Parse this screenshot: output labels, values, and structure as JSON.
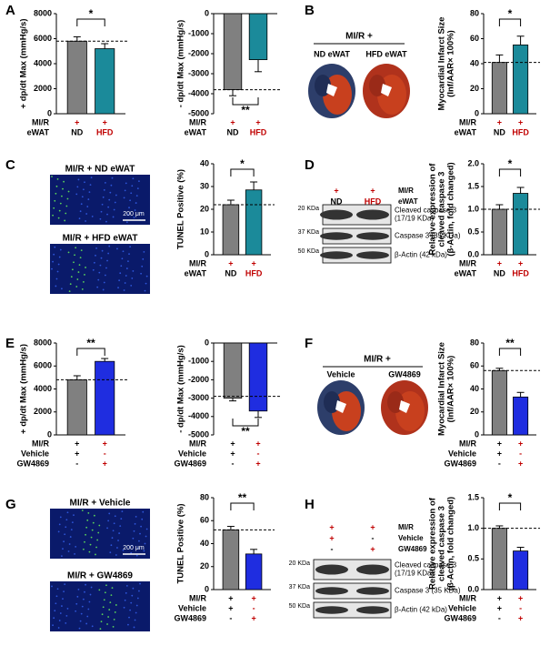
{
  "panel_labels": [
    "A",
    "B",
    "C",
    "D",
    "E",
    "F",
    "G",
    "H"
  ],
  "chart_data": [
    {
      "type": "bar",
      "y_label": [
        "+ dp/dt Max (mmHg/s)"
      ],
      "values": [
        5800,
        5200
      ],
      "errors": [
        350,
        400
      ],
      "colors": [
        "#808080",
        "#1b8a9a"
      ],
      "ylim": [
        0,
        8000
      ],
      "yticks": [
        0,
        2000,
        4000,
        6000,
        8000
      ],
      "ref_line": 5800,
      "significance": "*",
      "rows": [
        {
          "name": "MI/R",
          "labels": [
            "+",
            "+"
          ],
          "colors": [
            "#c00000",
            "#c00000"
          ]
        },
        {
          "name": "eWAT",
          "labels": [
            "ND",
            "HFD"
          ],
          "colors": [
            "#000000",
            "#c00000"
          ]
        }
      ]
    },
    {
      "type": "bar",
      "y_label": [
        "- dp/dt Max (mmHg/s)"
      ],
      "values": [
        -3800,
        -2300
      ],
      "errors": [
        300,
        600
      ],
      "colors": [
        "#808080",
        "#1b8a9a"
      ],
      "ylim": [
        -5000,
        0
      ],
      "yticks": [
        -5000,
        -4000,
        -3000,
        -2000,
        -1000,
        0
      ],
      "ref_line": -3800,
      "significance": "**",
      "rows": [
        {
          "name": "MI/R",
          "labels": [
            "+",
            "+"
          ],
          "colors": [
            "#c00000",
            "#c00000"
          ]
        },
        {
          "name": "eWAT",
          "labels": [
            "ND",
            "HFD"
          ],
          "colors": [
            "#000000",
            "#c00000"
          ]
        }
      ]
    },
    {
      "type": "bar",
      "y_label": [
        "Myocardial Infarct Size",
        "(Inf/AAR× 100%)"
      ],
      "values": [
        41,
        55
      ],
      "errors": [
        6,
        7
      ],
      "colors": [
        "#808080",
        "#1b8a9a"
      ],
      "ylim": [
        0,
        80
      ],
      "yticks": [
        0,
        20,
        40,
        60,
        80
      ],
      "ref_line": 41,
      "significance": "*",
      "rows": [
        {
          "name": "MI/R",
          "labels": [
            "+",
            "+"
          ],
          "colors": [
            "#c00000",
            "#c00000"
          ]
        },
        {
          "name": "eWAT",
          "labels": [
            "ND",
            "HFD"
          ],
          "colors": [
            "#000000",
            "#c00000"
          ]
        }
      ]
    },
    {
      "type": "bar",
      "y_label": [
        "TUNEL Positive (%)"
      ],
      "values": [
        22,
        28.5
      ],
      "errors": [
        2,
        3.5
      ],
      "colors": [
        "#808080",
        "#1b8a9a"
      ],
      "ylim": [
        0,
        40
      ],
      "yticks": [
        0,
        10,
        20,
        30,
        40
      ],
      "ref_line": 22,
      "significance": "*",
      "rows": [
        {
          "name": "MI/R",
          "labels": [
            "+",
            "+"
          ],
          "colors": [
            "#c00000",
            "#c00000"
          ]
        },
        {
          "name": "eWAT",
          "labels": [
            "ND",
            "HFD"
          ],
          "colors": [
            "#000000",
            "#c00000"
          ]
        }
      ]
    },
    {
      "type": "bar",
      "y_label": [
        "Relative expression of",
        "cleaved caspase 3",
        "(β-Actin, fold changed)"
      ],
      "values": [
        1.0,
        1.35
      ],
      "errors": [
        0.1,
        0.13
      ],
      "colors": [
        "#808080",
        "#1b8a9a"
      ],
      "ylim": [
        0,
        2
      ],
      "yticks": [
        {
          "value": 0,
          "label": "0.0"
        },
        0.5,
        {
          "value": 1,
          "label": "1.0"
        },
        1.5,
        {
          "value": 2,
          "label": "2.0"
        }
      ],
      "ref_line": 1.0,
      "significance": "*",
      "rows": [
        {
          "name": "MI/R",
          "labels": [
            "+",
            "+"
          ],
          "colors": [
            "#c00000",
            "#c00000"
          ]
        },
        {
          "name": "eWAT",
          "labels": [
            "ND",
            "HFD"
          ],
          "colors": [
            "#000000",
            "#c00000"
          ]
        }
      ]
    },
    {
      "type": "bar",
      "y_label": [
        "+ dp/dt Max (mmHg/s)"
      ],
      "values": [
        4800,
        6400
      ],
      "errors": [
        350,
        250
      ],
      "colors": [
        "#808080",
        "#1f2de0"
      ],
      "ylim": [
        0,
        8000
      ],
      "yticks": [
        0,
        2000,
        4000,
        6000,
        8000
      ],
      "ref_line": 4800,
      "significance": "**",
      "rows": [
        {
          "name": "MI/R",
          "labels": [
            "+",
            "+"
          ],
          "colors": [
            "#000000",
            "#c00000"
          ]
        },
        {
          "name": "Vehicle",
          "labels": [
            "+",
            "-"
          ],
          "colors": [
            "#000000",
            "#c00000"
          ]
        },
        {
          "name": "GW4869",
          "labels": [
            "-",
            "+"
          ],
          "colors": [
            "#000000",
            "#c00000"
          ]
        }
      ]
    },
    {
      "type": "bar",
      "y_label": [
        "- dp/dt Max (mmHg/s)"
      ],
      "values": [
        -3000,
        -3700
      ],
      "errors": [
        150,
        350
      ],
      "colors": [
        "#808080",
        "#1f2de0"
      ],
      "ylim": [
        -5000,
        0
      ],
      "yticks": [
        -5000,
        -4000,
        -3000,
        -2000,
        -1000,
        0
      ],
      "ref_line": -2900,
      "significance": "**",
      "rows": [
        {
          "name": "MI/R",
          "labels": [
            "+",
            "+"
          ],
          "colors": [
            "#000000",
            "#c00000"
          ]
        },
        {
          "name": "Vehicle",
          "labels": [
            "+",
            "-"
          ],
          "colors": [
            "#000000",
            "#c00000"
          ]
        },
        {
          "name": "GW4869",
          "labels": [
            "-",
            "+"
          ],
          "colors": [
            "#000000",
            "#c00000"
          ]
        }
      ]
    },
    {
      "type": "bar",
      "y_label": [
        "Myocardial Infarct Size",
        "(Inf/AAR× 100%)"
      ],
      "values": [
        56,
        33
      ],
      "errors": [
        2,
        4
      ],
      "colors": [
        "#808080",
        "#1f2de0"
      ],
      "ylim": [
        0,
        80
      ],
      "yticks": [
        0,
        20,
        40,
        60,
        80
      ],
      "ref_line": 56,
      "significance": "**",
      "rows": [
        {
          "name": "MI/R",
          "labels": [
            "+",
            "+"
          ],
          "colors": [
            "#000000",
            "#c00000"
          ]
        },
        {
          "name": "Vehicle",
          "labels": [
            "+",
            "-"
          ],
          "colors": [
            "#000000",
            "#c00000"
          ]
        },
        {
          "name": "GW4869",
          "labels": [
            "-",
            "+"
          ],
          "colors": [
            "#000000",
            "#c00000"
          ]
        }
      ]
    },
    {
      "type": "bar",
      "y_label": [
        "TUNEL Positive (%)"
      ],
      "values": [
        52,
        31
      ],
      "errors": [
        3,
        4
      ],
      "colors": [
        "#808080",
        "#1f2de0"
      ],
      "ylim": [
        0,
        80
      ],
      "yticks": [
        0,
        20,
        40,
        60,
        80
      ],
      "ref_line": 52,
      "significance": "**",
      "rows": [
        {
          "name": "MI/R",
          "labels": [
            "+",
            "+"
          ],
          "colors": [
            "#000000",
            "#c00000"
          ]
        },
        {
          "name": "Vehicle",
          "labels": [
            "+",
            "-"
          ],
          "colors": [
            "#000000",
            "#c00000"
          ]
        },
        {
          "name": "GW4869",
          "labels": [
            "-",
            "+"
          ],
          "colors": [
            "#000000",
            "#c00000"
          ]
        }
      ]
    },
    {
      "type": "bar",
      "y_label": [
        "Relative expression of",
        "cleaved caspase 3",
        "(β-Actin, fold changed)"
      ],
      "values": [
        1.0,
        0.63
      ],
      "errors": [
        0.04,
        0.06
      ],
      "colors": [
        "#808080",
        "#1f2de0"
      ],
      "ylim": [
        0,
        1.5
      ],
      "yticks": [
        {
          "value": 0,
          "label": "0.0"
        },
        0.5,
        {
          "value": 1,
          "label": "1.0"
        },
        1.5
      ],
      "ref_line": 1.0,
      "significance": "*",
      "rows": [
        {
          "name": "MI/R",
          "labels": [
            "+",
            "+"
          ],
          "colors": [
            "#000000",
            "#c00000"
          ]
        },
        {
          "name": "Vehicle",
          "labels": [
            "+",
            "-"
          ],
          "colors": [
            "#000000",
            "#c00000"
          ]
        },
        {
          "name": "GW4869",
          "labels": [
            "-",
            "+"
          ],
          "colors": [
            "#000000",
            "#c00000"
          ]
        }
      ]
    }
  ],
  "hearts": [
    {
      "title": "MI/R +",
      "groups": [
        "ND eWAT",
        "HFD eWAT"
      ]
    },
    {
      "title": "MI/R +",
      "groups": [
        "Vehicle",
        "GW4869"
      ]
    }
  ],
  "micrographs": [
    {
      "titles": [
        "MI/R + ND eWAT",
        "MI/R + HFD eWAT"
      ],
      "scale_bar": "200 μm"
    },
    {
      "titles": [
        "MI/R + Vehicle",
        "MI/R + GW4869"
      ],
      "scale_bar": "200 μm"
    }
  ],
  "blots": [
    {
      "rows": [
        {
          "name": "MI/R",
          "labels": [
            "+",
            "+"
          ],
          "colors": [
            "#c00000",
            "#c00000"
          ]
        },
        {
          "name": "eWAT",
          "labels": [
            "ND",
            "HFD"
          ],
          "colors": [
            "#000000",
            "#c00000"
          ]
        }
      ],
      "markers": [
        "20 KDa",
        "37 KDa",
        "50 KDa"
      ],
      "bands": [
        [
          "Cleaved caspase 3",
          "(17/19 KDa)"
        ],
        [
          "Caspase 3 (35 KDa)"
        ],
        [
          "β-Actin (42 kDa)"
        ]
      ]
    },
    {
      "rows": [
        {
          "name": "MI/R",
          "labels": [
            "+",
            "+"
          ],
          "colors": [
            "#c00000",
            "#c00000"
          ]
        },
        {
          "name": "Vehicle",
          "labels": [
            "+",
            "-"
          ],
          "colors": [
            "#c00000",
            "#000000"
          ]
        },
        {
          "name": "GW4869",
          "labels": [
            "-",
            "+"
          ],
          "colors": [
            "#000000",
            "#c00000"
          ]
        }
      ],
      "markers": [
        "20 KDa",
        "37 KDa",
        "50 KDa"
      ],
      "bands": [
        [
          "Cleaved caspase 3",
          "(17/19 KDa)"
        ],
        [
          "Caspase 3 (35 KDa)"
        ],
        [
          "β-Actin (42 kDa)"
        ]
      ]
    }
  ]
}
